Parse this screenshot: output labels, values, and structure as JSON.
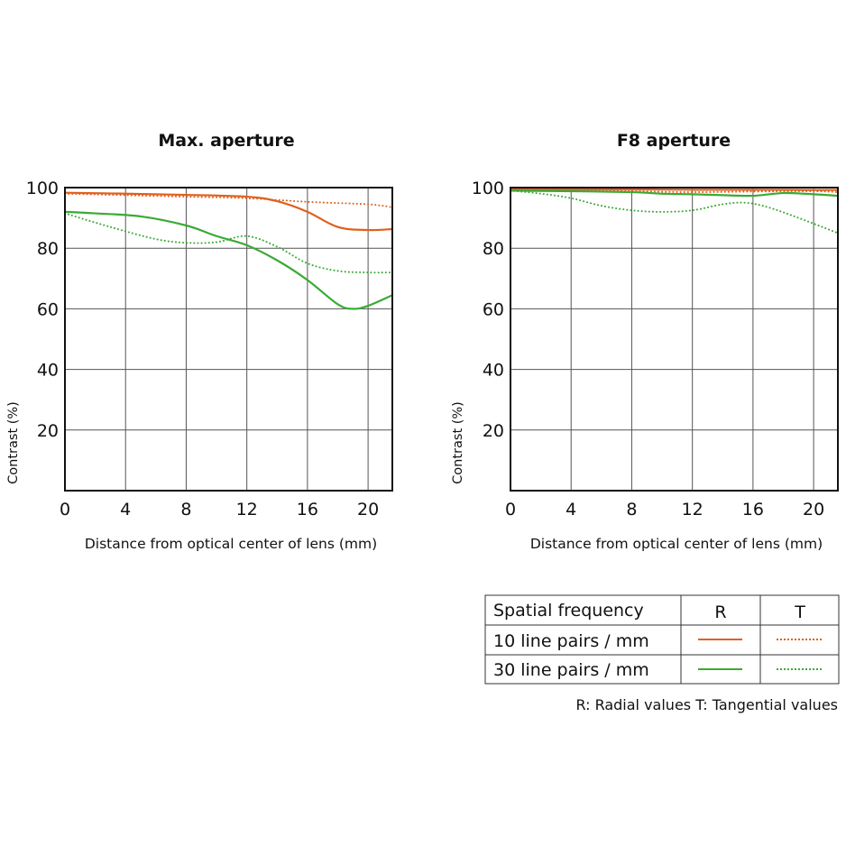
{
  "colors": {
    "freq10": "#e0601e",
    "freq30": "#3aaa35"
  },
  "chart_data": [
    {
      "type": "line",
      "title": "Max. aperture",
      "xlabel": "Distance from optical center of lens (mm)",
      "ylabel": "Contrast (%)",
      "xlim": [
        0,
        21.6
      ],
      "ylim": [
        0,
        100
      ],
      "xticks": [
        0,
        4,
        8,
        12,
        16,
        20
      ],
      "yticks": [
        20,
        40,
        60,
        80,
        100
      ],
      "series": [
        {
          "name": "10 line pairs / mm R",
          "freq": "10",
          "style": "solid",
          "x": [
            0,
            4,
            8,
            12,
            14,
            16,
            18,
            20,
            21.6
          ],
          "y": [
            98.3,
            98,
            97.6,
            97,
            95.5,
            92,
            87,
            86,
            86.3
          ]
        },
        {
          "name": "10 line pairs / mm T",
          "freq": "10",
          "style": "dotted",
          "x": [
            0,
            4,
            8,
            12,
            16,
            20,
            21.6
          ],
          "y": [
            98,
            97.5,
            97,
            96.5,
            95.3,
            94.5,
            93.5
          ]
        },
        {
          "name": "30 line pairs / mm R",
          "freq": "30",
          "style": "solid",
          "x": [
            0,
            2,
            5,
            8,
            10,
            12,
            14,
            16,
            18,
            19,
            20,
            21.6
          ],
          "y": [
            92,
            91.5,
            90.5,
            87.5,
            84,
            81,
            76,
            69.5,
            61.5,
            60,
            61,
            64.5
          ]
        },
        {
          "name": "30 line pairs / mm T",
          "freq": "30",
          "style": "dotted",
          "x": [
            0,
            3,
            6,
            8,
            10,
            12,
            14,
            16,
            18,
            20,
            21.6
          ],
          "y": [
            91.5,
            87,
            83,
            81.8,
            82,
            84,
            80.5,
            75,
            72.5,
            72,
            72
          ]
        }
      ]
    },
    {
      "type": "line",
      "title": "F8 aperture",
      "xlabel": "Distance from optical center of lens (mm)",
      "ylabel": "Contrast (%)",
      "xlim": [
        0,
        21.6
      ],
      "ylim": [
        0,
        100
      ],
      "xticks": [
        0,
        4,
        8,
        12,
        16,
        20
      ],
      "yticks": [
        20,
        40,
        60,
        80,
        100
      ],
      "series": [
        {
          "name": "10 line pairs / mm R",
          "freq": "10",
          "style": "solid",
          "x": [
            0,
            4,
            8,
            12,
            16,
            20,
            21.6
          ],
          "y": [
            99.5,
            99.4,
            99.4,
            99.3,
            99.3,
            99.2,
            99.2
          ]
        },
        {
          "name": "10 line pairs / mm T",
          "freq": "10",
          "style": "dotted",
          "x": [
            0,
            4,
            8,
            12,
            16,
            20,
            21.6
          ],
          "y": [
            99.2,
            99,
            98.8,
            98.5,
            98.7,
            98.8,
            98.5
          ]
        },
        {
          "name": "30 line pairs / mm R",
          "freq": "30",
          "style": "solid",
          "x": [
            0,
            4,
            8,
            10,
            12,
            14,
            16,
            18,
            20,
            21.6
          ],
          "y": [
            99,
            98.8,
            98.5,
            98,
            97.8,
            97.5,
            97.3,
            98.2,
            97.8,
            97.3
          ]
        },
        {
          "name": "30 line pairs / mm T",
          "freq": "30",
          "style": "dotted",
          "x": [
            0,
            2,
            4,
            6,
            8,
            10,
            12,
            14,
            15.5,
            17,
            19,
            21.6
          ],
          "y": [
            99,
            98,
            96.5,
            94,
            92.5,
            92,
            92.5,
            94.5,
            95,
            93.5,
            90,
            85
          ]
        }
      ]
    }
  ],
  "legend": {
    "header": "Spatial frequency",
    "col_r": "R",
    "col_t": "T",
    "row10": "10 line pairs / mm",
    "row30": "30 line pairs / mm",
    "note": "R: Radial values  T: Tangential values"
  }
}
